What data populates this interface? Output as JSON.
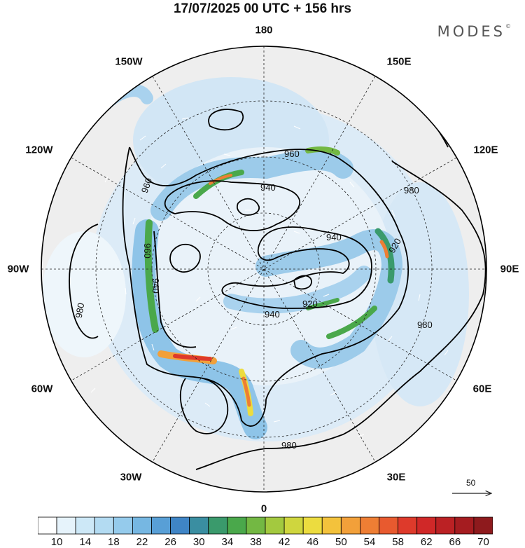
{
  "header": {
    "title": "17/07/2025  00 UTC  + 156 hrs",
    "brand": "MODES"
  },
  "longitude_labels": {
    "top": "180",
    "top_left": "150W",
    "top_right": "150E",
    "upper_left": "120W",
    "upper_right": "120E",
    "left": "90W",
    "right": "90E",
    "lower_left": "60W",
    "lower_right": "60E",
    "bottom_left": "30W",
    "bottom_right": "30E",
    "bottom": "0"
  },
  "contour_labels": [
    "960",
    "960",
    "940",
    "940",
    "920",
    "920",
    "960",
    "940",
    "940",
    "980",
    "980",
    "980",
    "980"
  ],
  "reference_vector": {
    "value": "50"
  },
  "colorbar": {
    "tick_labels": [
      "10",
      "14",
      "18",
      "22",
      "26",
      "30",
      "34",
      "38",
      "42",
      "46",
      "50",
      "54",
      "58",
      "62",
      "66",
      "70"
    ],
    "colors": [
      "#ffffff",
      "#e6f3fb",
      "#cde8f7",
      "#b3dbf2",
      "#95cbec",
      "#76b7e2",
      "#589fd6",
      "#3f85c6",
      "#3a8ea1",
      "#3a9a6c",
      "#4aa84b",
      "#73b843",
      "#a3c93f",
      "#cfd63e",
      "#ecdc3f",
      "#f3c23c",
      "#f2a03a",
      "#ee7e34",
      "#e85a2f",
      "#de3a2b",
      "#d02828",
      "#bb2124",
      "#a51c20",
      "#8e1a1d"
    ]
  }
}
